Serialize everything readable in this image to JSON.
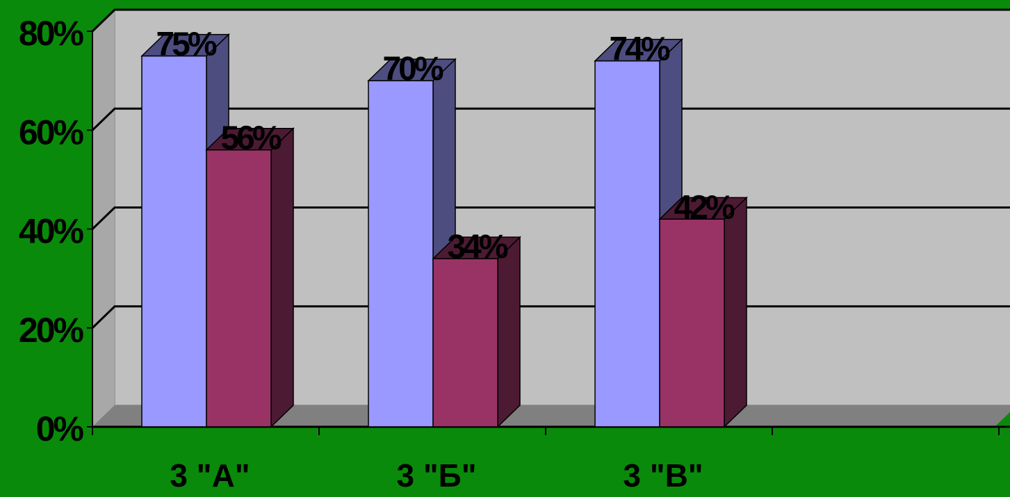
{
  "colors": {
    "background": "#0a8a0a",
    "plot_wall": "#c0c0c0",
    "floor": "#808080",
    "series1_front": "#9999ff",
    "series1_side": "#4d4d80",
    "series2_front": "#993366",
    "series2_side": "#4d1a33",
    "gridline": "#000000"
  },
  "chart_data": {
    "type": "bar",
    "style": "3d-clustered-column",
    "title": "",
    "xlabel": "",
    "ylabel": "",
    "categories": [
      "3 \"А\"",
      "3 \"Б\"",
      "3 \"В\""
    ],
    "series": [
      {
        "values": [
          75,
          70,
          74
        ],
        "data_labels": [
          "75%",
          "70%",
          "74%"
        ]
      },
      {
        "values": [
          56,
          34,
          42
        ],
        "data_labels": [
          "56%",
          "34%",
          "42%"
        ]
      }
    ],
    "ylim": [
      0,
      80
    ],
    "yticks": [
      0,
      20,
      40,
      60,
      80
    ],
    "ytick_labels": [
      "0%",
      "20%",
      "40%",
      "60%",
      "80%"
    ],
    "grid": true,
    "legend": "none"
  }
}
